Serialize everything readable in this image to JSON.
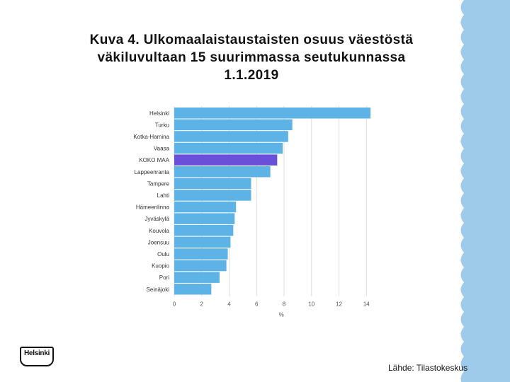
{
  "title": {
    "line1": "Kuva 4. Ulkomaalaistaustaisten osuus väestöstä",
    "line2": "väkiluvultaan 15 suurimmassa seutukunnassa",
    "line3": "1.1.2019"
  },
  "source": "Lähde: Tilastokeskus",
  "logo_text": "Helsinki",
  "colors": {
    "bar": "#5DB3E6",
    "highlight_bar": "#6A4FD8",
    "grid": "#DDDDDD",
    "edge_wave": "#9FCBEB"
  },
  "chart_data": {
    "type": "bar",
    "orientation": "horizontal",
    "title": "",
    "xlabel": "%",
    "ylabel": "",
    "categories": [
      "Helsinki",
      "Turku",
      "Kotka-Hamina",
      "Vaasa",
      "KOKO MAA",
      "Lappeenranta",
      "Tampere",
      "Lahti",
      "Hämeenlinna",
      "Jyväskylä",
      "Kouvola",
      "Joensuu",
      "Oulu",
      "Kuopio",
      "Pori",
      "Seinäjoki"
    ],
    "values": [
      14.3,
      8.6,
      8.3,
      7.9,
      7.5,
      7.0,
      5.6,
      5.6,
      4.5,
      4.4,
      4.3,
      4.1,
      3.9,
      3.8,
      3.3,
      2.7
    ],
    "highlight": "KOKO MAA",
    "xticks": [
      0,
      2,
      4,
      6,
      8,
      10,
      12,
      14
    ],
    "xlim": [
      0,
      14.5
    ],
    "grid": true
  }
}
